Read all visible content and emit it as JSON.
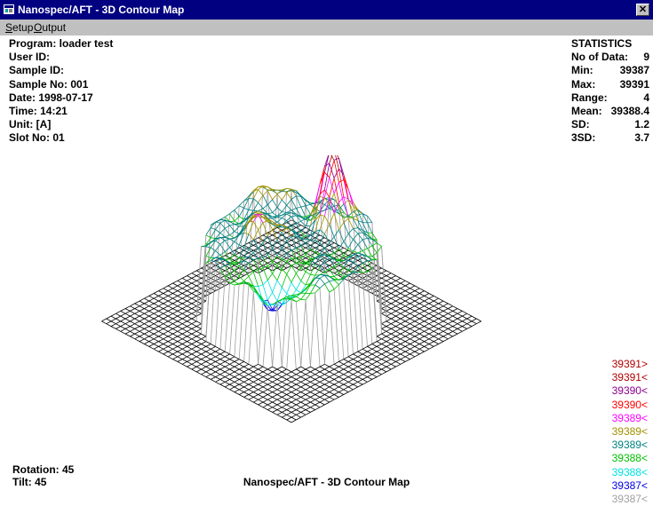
{
  "window": {
    "title": "Nanospec/AFT - 3D Contour Map",
    "close_label": "✕"
  },
  "menu": {
    "setup": {
      "underline": "S",
      "rest": "etup"
    },
    "output": {
      "underline": "O",
      "rest": "utput"
    }
  },
  "info": [
    "Program: loader test",
    "User ID:",
    "Sample ID:",
    "Sample No: 001",
    "Date: 1998-07-17",
    "Time: 14:21",
    "Unit: [A]",
    "Slot No: 01"
  ],
  "statistics": {
    "heading": "STATISTICS",
    "rows": [
      {
        "label": "No of Data:",
        "value": "9"
      },
      {
        "label": "Min:",
        "value": "39387"
      },
      {
        "label": "Max:",
        "value": "39391"
      },
      {
        "label": "Range:",
        "value": "4"
      },
      {
        "label": "Mean:",
        "value": "39388.4"
      },
      {
        "label": "SD:",
        "value": "1.2"
      },
      {
        "label": "3SD:",
        "value": "3.7"
      }
    ]
  },
  "legend": [
    {
      "label": "39391>",
      "color": "#b00000"
    },
    {
      "label": "39391<",
      "color": "#b00000"
    },
    {
      "label": "39390<",
      "color": "#8b008b"
    },
    {
      "label": "39390<",
      "color": "#ff0000"
    },
    {
      "label": "39389<",
      "color": "#ff00ff"
    },
    {
      "label": "39389<",
      "color": "#a09000"
    },
    {
      "label": "39389<",
      "color": "#008080"
    },
    {
      "label": "39388<",
      "color": "#00c000"
    },
    {
      "label": "39388<",
      "color": "#00e0e0"
    },
    {
      "label": "39387<",
      "color": "#0000e0"
    },
    {
      "label": "39387<",
      "color": "#a0a0a0"
    }
  ],
  "rotation": "Rotation: 45",
  "tilt": "Tilt: 45",
  "footer_title": "Nanospec/AFT - 3D Contour Map",
  "plot": {
    "grid_color": "#000000",
    "rotation_deg": 45,
    "tilt_deg": 45
  }
}
